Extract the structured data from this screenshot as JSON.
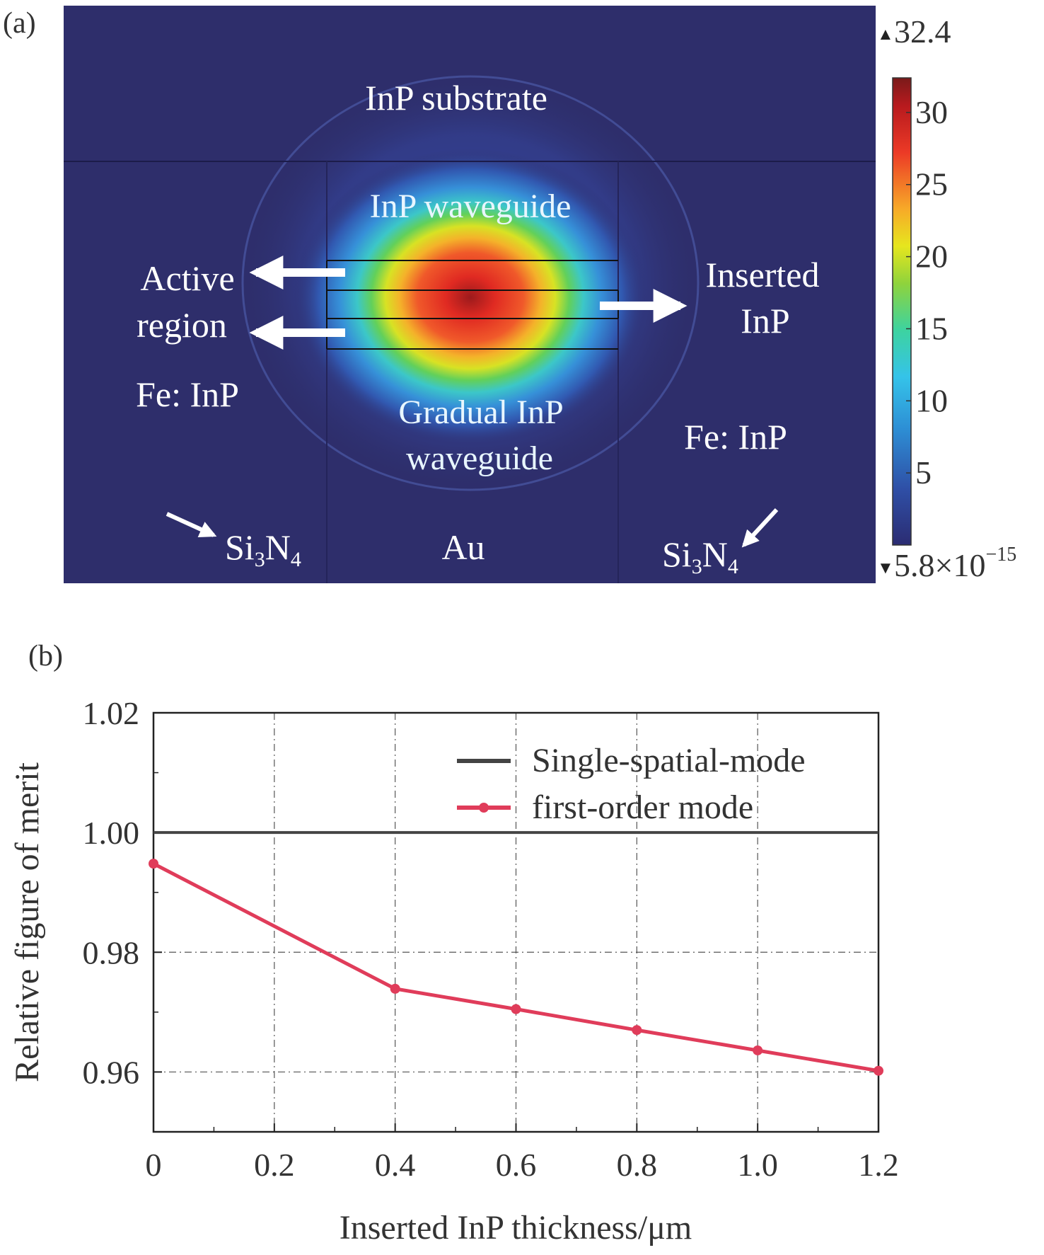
{
  "panel_a": {
    "label": "(a)",
    "labels": {
      "substrate": "InP substrate",
      "waveguide": "InP waveguide",
      "active_line1": "Active",
      "active_line2": "region",
      "inserted_line1": "Inserted",
      "inserted_line2": "InP",
      "feinp_left": "Fe: InP",
      "feinp_right": "Fe: InP",
      "gradual_line1": "Gradual InP",
      "gradual_line2": "waveguide",
      "si3n4_left": {
        "base": "Si",
        "sub1": "3",
        "mid": "N",
        "sub2": "4"
      },
      "si3n4_right": {
        "base": "Si",
        "sub1": "3",
        "mid": "N",
        "sub2": "4"
      },
      "au": "Au"
    },
    "colorbar": {
      "max_label": "32.4",
      "min_mantissa": "5.8×10",
      "min_exponent": "−15",
      "max_marker": "▲",
      "min_marker": "▼",
      "ticks": [
        "5",
        "10",
        "15",
        "20",
        "25",
        "30"
      ],
      "tick_values": [
        5,
        10,
        15,
        20,
        25,
        30
      ],
      "range": [
        0,
        32.4
      ],
      "colormap": [
        "#2b2c72",
        "#2f4fa6",
        "#2d8fd5",
        "#35c3e9",
        "#3dd3a0",
        "#8fd33c",
        "#e6e61e",
        "#f7a928",
        "#ec3a26",
        "#b81a1e",
        "#7a1a1a"
      ]
    },
    "background_color": "#2e2e6b"
  },
  "panel_b": {
    "label": "(b)"
  },
  "chart_data": {
    "type": "line",
    "title": "",
    "xlabel": "Inserted InP thickness/μm",
    "ylabel": "Relative figure of merit",
    "xlim": [
      0,
      1.2
    ],
    "ylim": [
      0.95,
      1.02
    ],
    "xticks": [
      0,
      0.2,
      0.4,
      0.6,
      0.8,
      1.0,
      1.2
    ],
    "xtick_labels": [
      "0",
      "0.2",
      "0.4",
      "0.6",
      "0.8",
      "1.0",
      "1.2"
    ],
    "yticks": [
      0.96,
      0.98,
      1.0,
      1.02
    ],
    "ytick_labels": [
      "0.96",
      "0.98",
      "1.00",
      "1.02"
    ],
    "grid": true,
    "legend_position": "top-right",
    "series": [
      {
        "name": "Single-spatial-mode",
        "color": "#444444",
        "marker": "none",
        "x": [
          0,
          1.2
        ],
        "y": [
          1.0,
          1.0
        ]
      },
      {
        "name": "first-order mode",
        "color": "#e03c5a",
        "marker": "circle",
        "x": [
          0,
          0.4,
          0.6,
          0.8,
          1.0,
          1.2
        ],
        "y": [
          0.9948,
          0.9739,
          0.9705,
          0.967,
          0.9636,
          0.9602
        ]
      }
    ]
  }
}
